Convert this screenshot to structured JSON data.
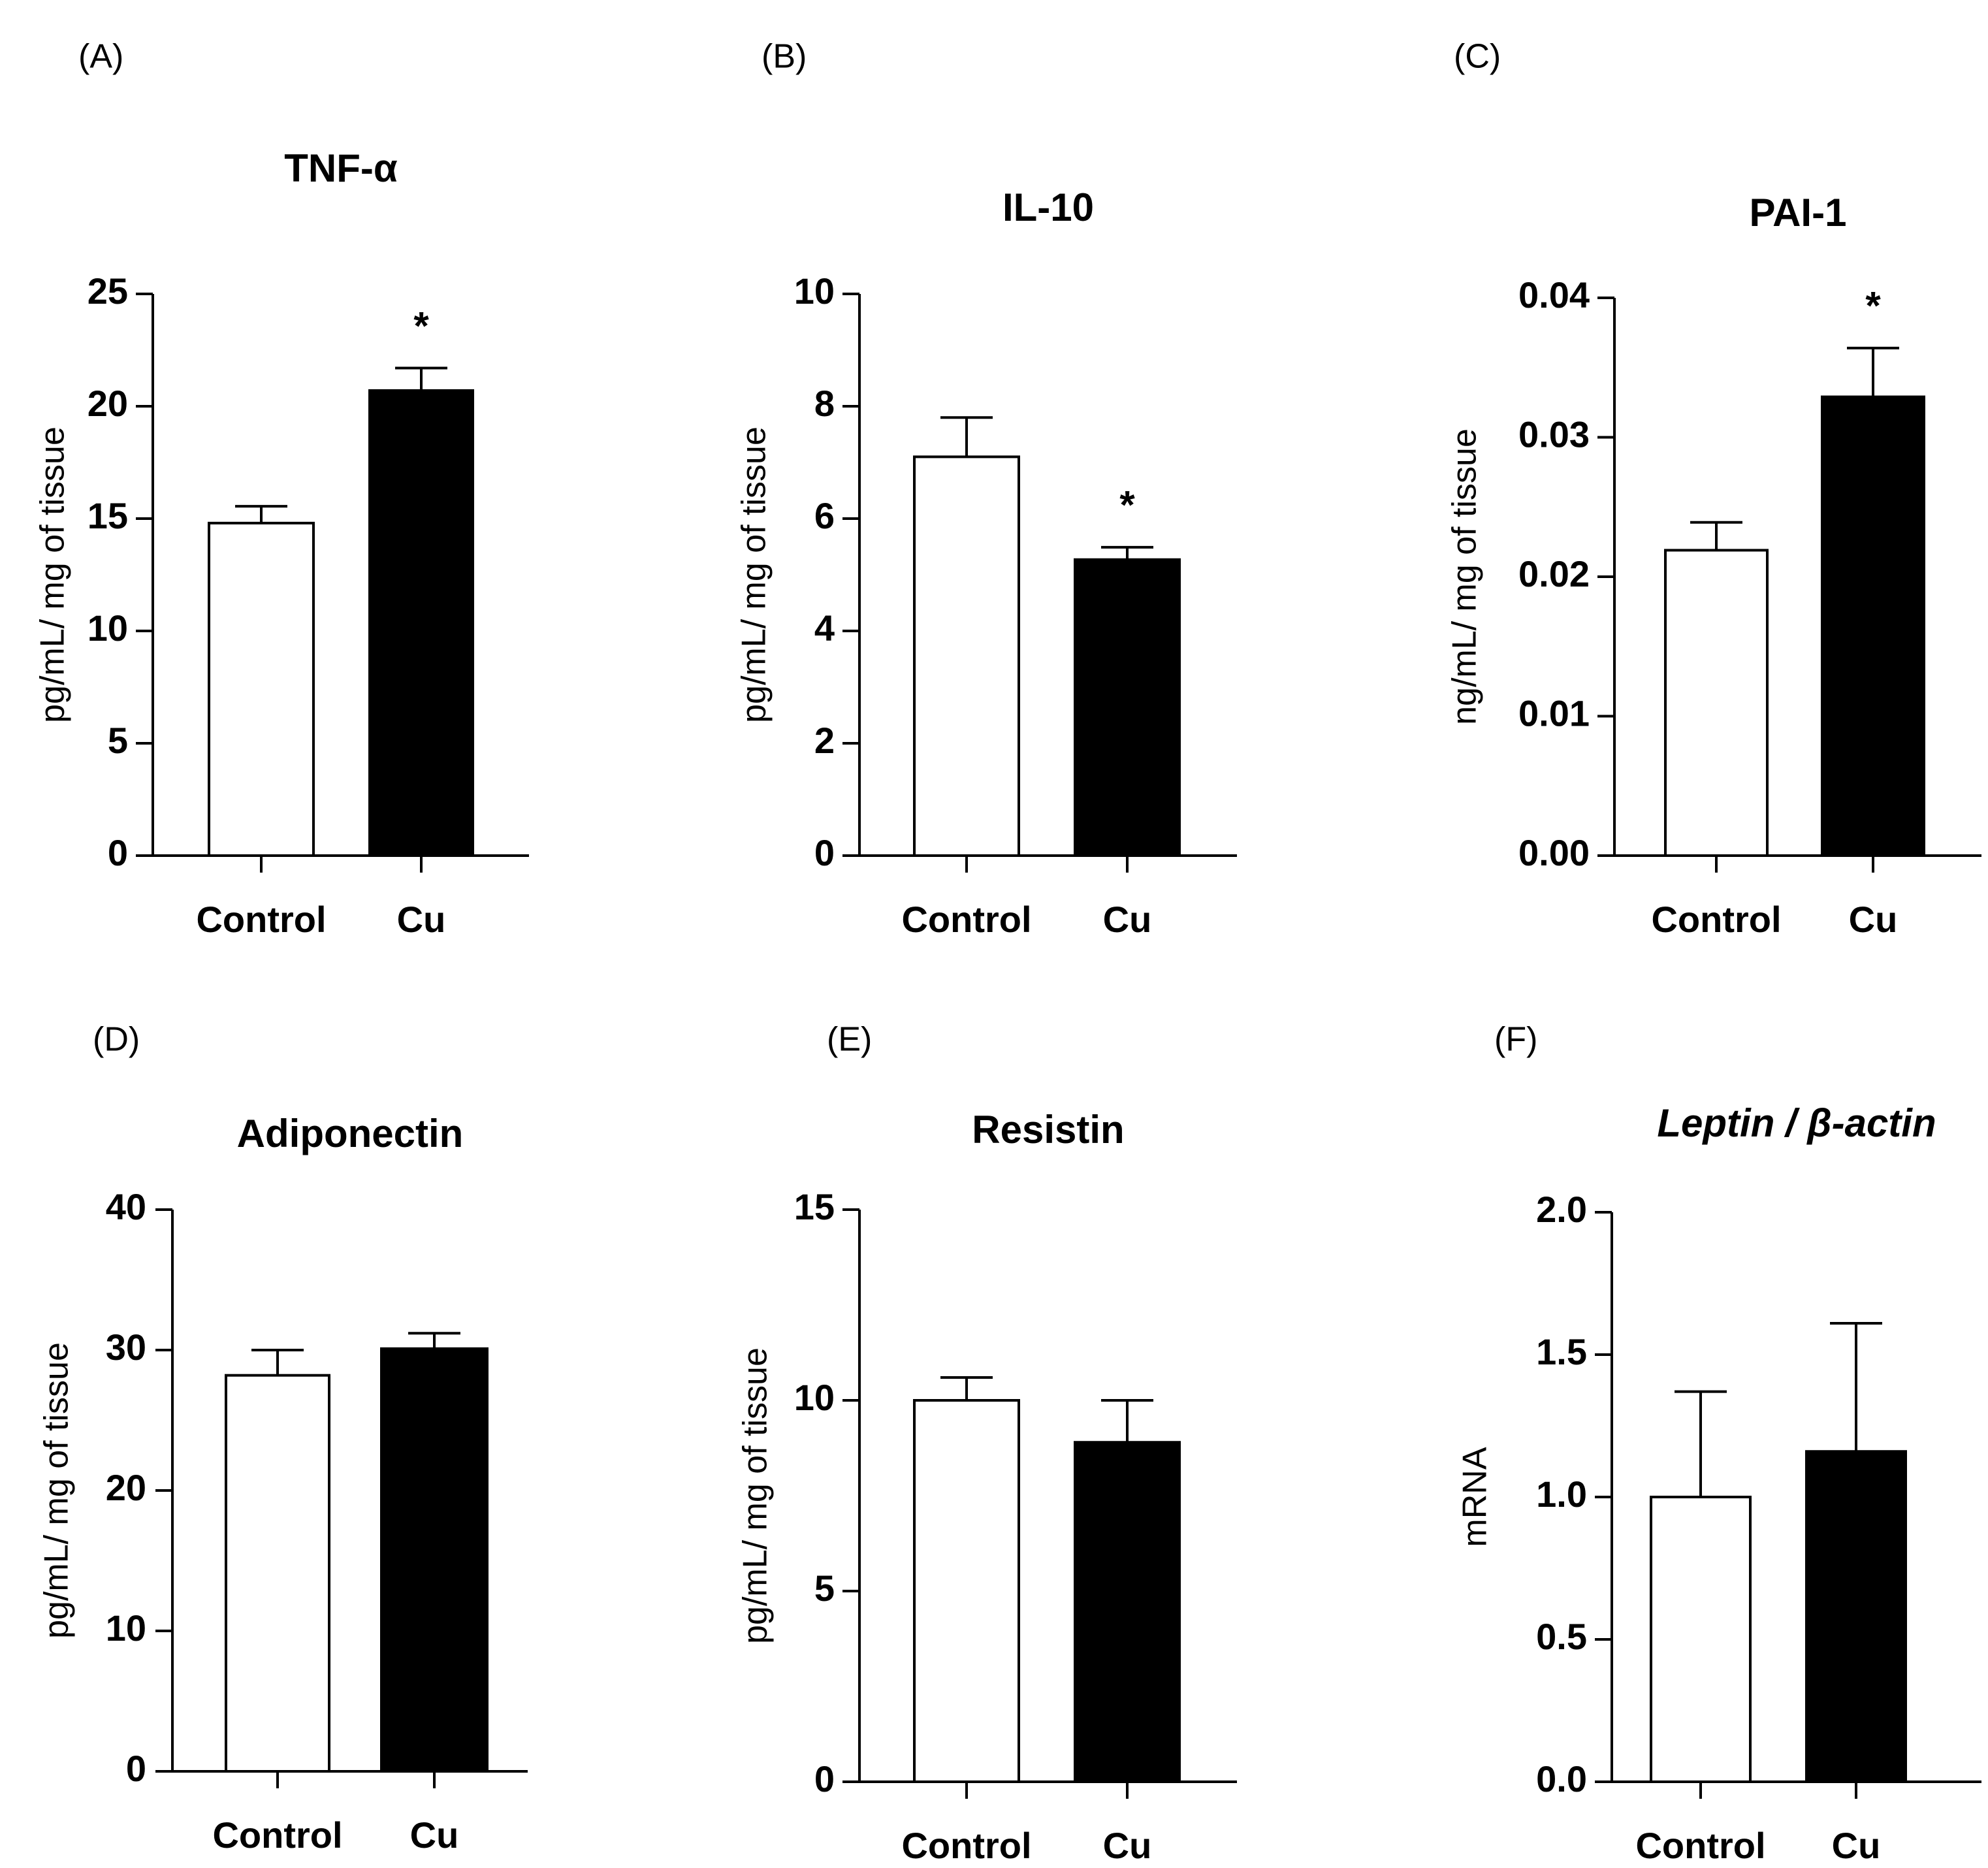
{
  "figure": {
    "background": "#ffffff"
  },
  "colors": {
    "control_fill": "#ffffff",
    "cu_fill": "#000000",
    "stroke": "#000000"
  },
  "chart_data": [
    {
      "panel": "(A)",
      "type": "bar",
      "title": "TNF-α",
      "italic_title": false,
      "ylabel": "pg/mL/ mg of tissue",
      "ylim": [
        0,
        25
      ],
      "yticks": [
        "0",
        "5",
        "10",
        "15",
        "20",
        "25"
      ],
      "categories": [
        "Control",
        "Cu"
      ],
      "values": [
        14.8,
        20.7
      ],
      "errors": [
        0.75,
        1.0
      ],
      "significance": [
        "",
        "*"
      ]
    },
    {
      "panel": "(B)",
      "type": "bar",
      "title": "IL-10",
      "italic_title": false,
      "ylabel": "pg/mL/ mg of tissue",
      "ylim": [
        0,
        10
      ],
      "yticks": [
        "0",
        "2",
        "4",
        "6",
        "8",
        "10"
      ],
      "categories": [
        "Control",
        "Cu"
      ],
      "values": [
        7.1,
        5.27
      ],
      "errors": [
        0.7,
        0.22
      ],
      "significance": [
        "",
        "*"
      ]
    },
    {
      "panel": "(C)",
      "type": "bar",
      "title": "PAI-1",
      "italic_title": false,
      "ylabel": "ng/mL/ mg of tissue",
      "ylim": [
        0,
        0.04
      ],
      "yticks": [
        "0.00",
        "0.01",
        "0.02",
        "0.03",
        "0.04"
      ],
      "categories": [
        "Control",
        "Cu"
      ],
      "values": [
        0.0219,
        0.0329
      ],
      "errors": [
        0.002,
        0.0035
      ],
      "significance": [
        "",
        "*"
      ]
    },
    {
      "panel": "(D)",
      "type": "bar",
      "title": "Adiponectin",
      "italic_title": false,
      "ylabel": "pg/mL/ mg of tissue",
      "ylim": [
        0,
        40
      ],
      "yticks": [
        "0",
        "10",
        "20",
        "30",
        "40"
      ],
      "categories": [
        "Control",
        "Cu"
      ],
      "values": [
        28.2,
        30.1
      ],
      "errors": [
        1.8,
        1.1
      ],
      "significance": [
        "",
        ""
      ]
    },
    {
      "panel": "(E)",
      "type": "bar",
      "title": "Resistin",
      "italic_title": false,
      "ylabel": "pg/mL/ mg of tissue",
      "ylim": [
        0,
        15
      ],
      "yticks": [
        "0",
        "5",
        "10",
        "15"
      ],
      "categories": [
        "Control",
        "Cu"
      ],
      "values": [
        10.0,
        8.9
      ],
      "errors": [
        0.6,
        1.1
      ],
      "significance": [
        "",
        ""
      ]
    },
    {
      "panel": "(F)",
      "type": "bar",
      "title": "Leptin / β-actin",
      "italic_title": true,
      "ylabel": "mRNA",
      "ylim": [
        0,
        2.0
      ],
      "yticks": [
        "0.0",
        "0.5",
        "1.0",
        "1.5",
        "2.0"
      ],
      "categories": [
        "Control",
        "Cu"
      ],
      "values": [
        1.0,
        1.16
      ],
      "errors": [
        0.37,
        0.45
      ],
      "significance": [
        "",
        ""
      ]
    }
  ]
}
